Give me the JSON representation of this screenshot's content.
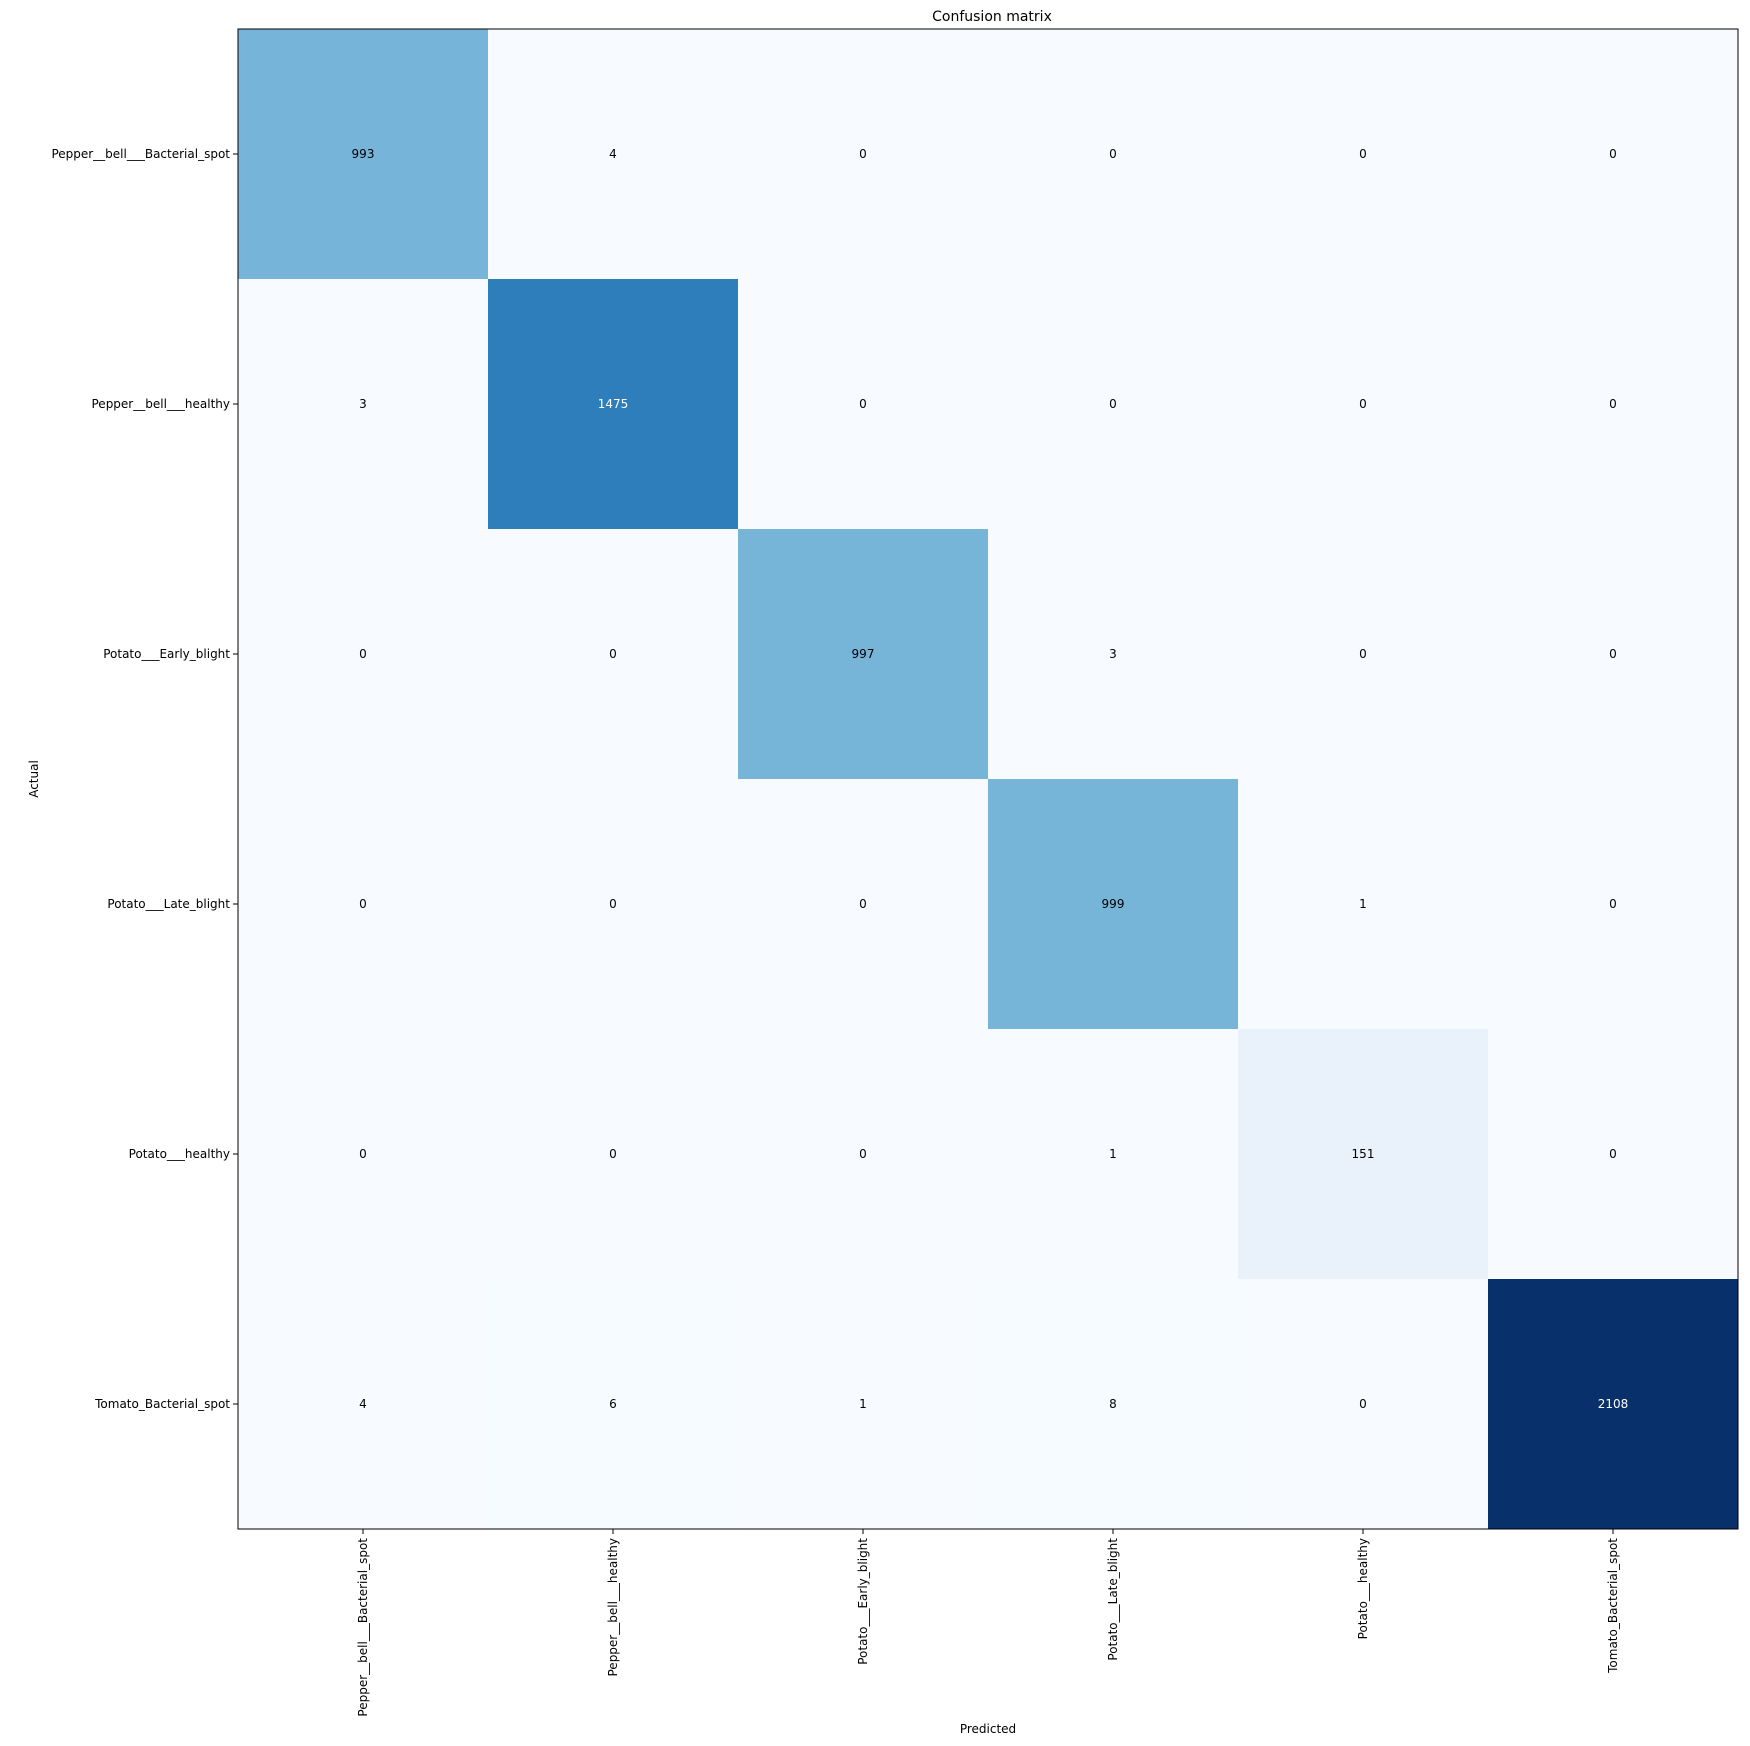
{
  "chart_data": {
    "type": "heatmap",
    "title": "Confusion matrix",
    "xlabel": "Predicted",
    "ylabel": "Actual",
    "colormap": "Blues",
    "x_categories": [
      "Pepper__bell___Bacterial_spot",
      "Pepper__bell___healthy",
      "Potato___Early_blight",
      "Potato___Late_blight",
      "Potato___healthy",
      "Tomato_Bacterial_spot"
    ],
    "y_categories": [
      "Pepper__bell___Bacterial_spot",
      "Pepper__bell___healthy",
      "Potato___Early_blight",
      "Potato___Late_blight",
      "Potato___healthy",
      "Tomato_Bacterial_spot"
    ],
    "values": [
      [
        993,
        4,
        0,
        0,
        0,
        0
      ],
      [
        3,
        1475,
        0,
        0,
        0,
        0
      ],
      [
        0,
        0,
        997,
        3,
        0,
        0
      ],
      [
        0,
        0,
        0,
        999,
        1,
        0
      ],
      [
        0,
        0,
        0,
        1,
        151,
        0
      ],
      [
        4,
        6,
        1,
        8,
        0,
        2108
      ]
    ],
    "value_range": [
      0,
      2108
    ],
    "grid": false
  }
}
